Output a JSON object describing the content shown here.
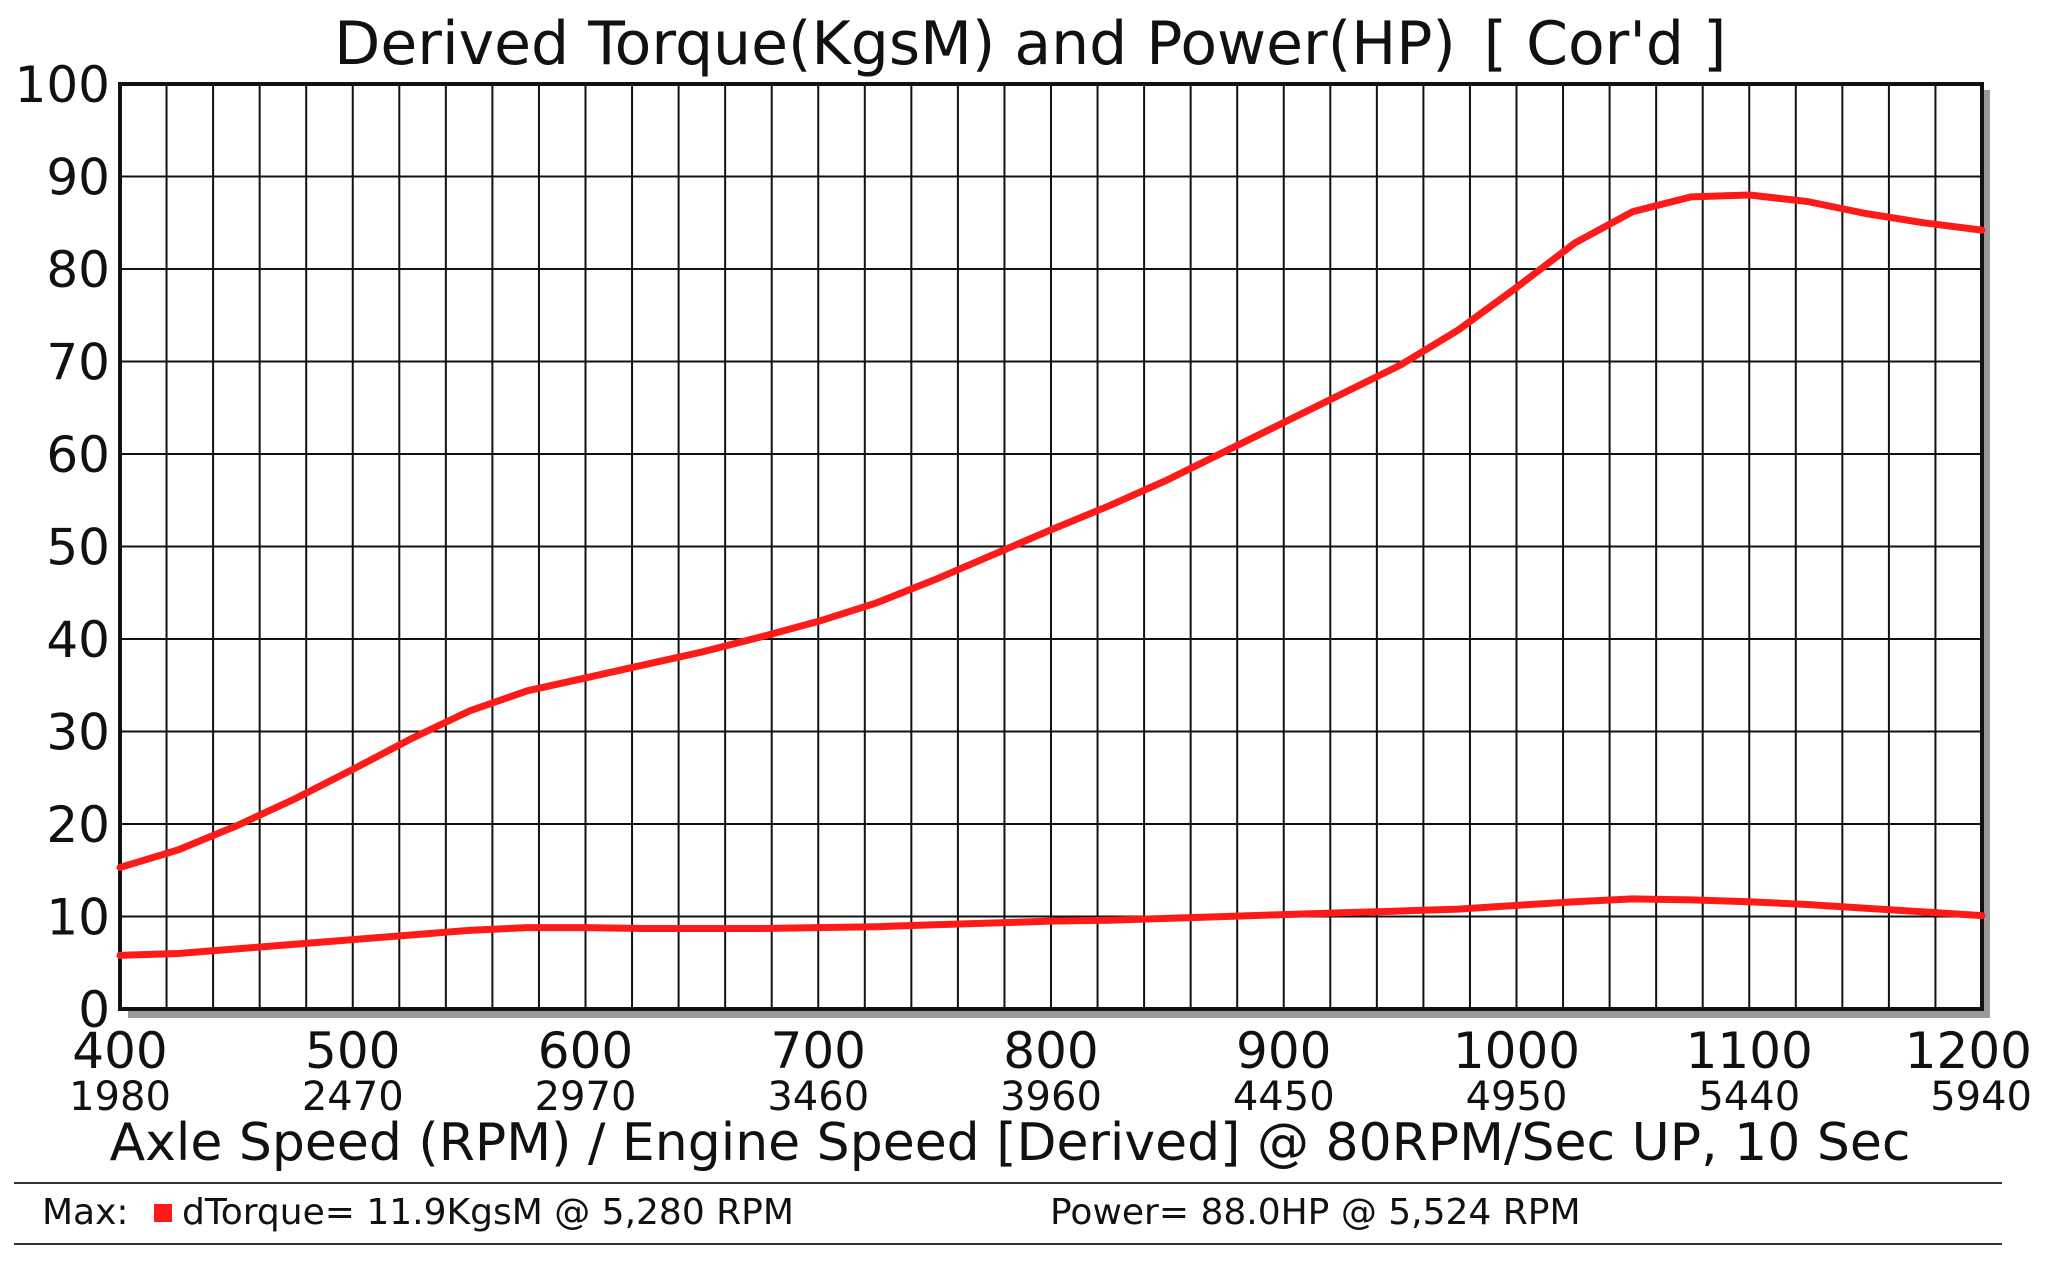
{
  "chart_data": {
    "type": "line",
    "title_left": "Derived Torque(KgsM) and Power(HP)",
    "title_right": "[ Cor'd ]",
    "xlabel": "Axle Speed (RPM) / Engine Speed [Derived] @ 80RPM/Sec UP, 10 Sec",
    "xlim": [
      400,
      1200
    ],
    "ylim": [
      0,
      100
    ],
    "x_ticks": [
      {
        "value": 400,
        "label": "400",
        "sub": "1980"
      },
      {
        "value": 500,
        "label": "500",
        "sub": "2470"
      },
      {
        "value": 600,
        "label": "600",
        "sub": "2970"
      },
      {
        "value": 700,
        "label": "700",
        "sub": "3460"
      },
      {
        "value": 800,
        "label": "800",
        "sub": "3960"
      },
      {
        "value": 900,
        "label": "900",
        "sub": "4450"
      },
      {
        "value": 1000,
        "label": "1000",
        "sub": "4950"
      },
      {
        "value": 1100,
        "label": "1100",
        "sub": "5440"
      },
      {
        "value": 1200,
        "label": "1200",
        "sub": "5940"
      }
    ],
    "y_ticks": [
      "0",
      "10",
      "20",
      "30",
      "40",
      "50",
      "60",
      "70",
      "80",
      "90",
      "100"
    ],
    "x_grid_step": 20,
    "y_grid_step": 10,
    "series": [
      {
        "name": "Power",
        "color": "#ff1a1a",
        "x": [
          400,
          425,
          450,
          475,
          500,
          525,
          550,
          575,
          600,
          625,
          650,
          675,
          700,
          725,
          750,
          775,
          800,
          825,
          850,
          875,
          900,
          925,
          950,
          975,
          1000,
          1025,
          1050,
          1075,
          1100,
          1125,
          1150,
          1175,
          1200
        ],
        "y": [
          15.3,
          17.2,
          19.8,
          22.7,
          25.9,
          29.2,
          32.2,
          34.4,
          35.8,
          37.2,
          38.6,
          40.2,
          41.9,
          43.9,
          46.4,
          49.1,
          51.8,
          54.4,
          57.2,
          60.3,
          63.4,
          66.5,
          69.6,
          73.4,
          78.0,
          82.8,
          86.2,
          87.8,
          88.0,
          87.3,
          86.0,
          85.0,
          84.2
        ]
      },
      {
        "name": "dTorque",
        "color": "#ff1a1a",
        "x": [
          400,
          425,
          450,
          475,
          500,
          525,
          550,
          575,
          600,
          625,
          650,
          675,
          700,
          725,
          750,
          775,
          800,
          825,
          850,
          875,
          900,
          925,
          950,
          975,
          1000,
          1025,
          1050,
          1075,
          1100,
          1125,
          1150,
          1175,
          1200
        ],
        "y": [
          5.8,
          6.0,
          6.5,
          7.0,
          7.5,
          8.0,
          8.5,
          8.8,
          8.8,
          8.7,
          8.7,
          8.7,
          8.8,
          8.9,
          9.1,
          9.3,
          9.5,
          9.6,
          9.8,
          10.0,
          10.2,
          10.4,
          10.6,
          10.8,
          11.2,
          11.6,
          11.9,
          11.8,
          11.6,
          11.3,
          10.9,
          10.5,
          10.1
        ]
      }
    ],
    "footer": {
      "max_label": "Max:",
      "torque_text": "dTorque= 11.9KgsM @  5,280 RPM",
      "power_text": "Power= 88.0HP @   5,524 RPM",
      "marker_color": "#ff1a1a"
    }
  }
}
